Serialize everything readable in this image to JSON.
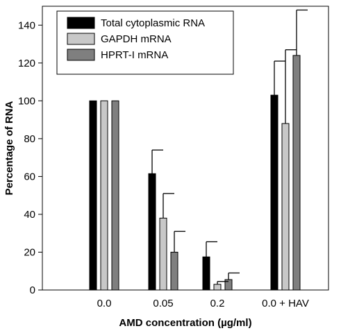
{
  "chart_data": {
    "type": "bar",
    "xlabel": "AMD concentration (µg/ml)",
    "ylabel": "Percentage of RNA",
    "ylim": [
      0,
      150
    ],
    "yticks": [
      0,
      20,
      40,
      60,
      80,
      100,
      120,
      140
    ],
    "categories": [
      "0.0",
      "0.05",
      "0.2",
      "0.0 + HAV"
    ],
    "series": [
      {
        "name": "Total cytoplasmic RNA",
        "color": "#000000",
        "values": [
          100,
          61.5,
          17.5,
          103
        ],
        "errors": [
          0,
          12.5,
          8,
          18
        ]
      },
      {
        "name": "GAPDH mRNA",
        "color": "#c8c8c8",
        "values": [
          100,
          38,
          3,
          88
        ],
        "errors": [
          0,
          13,
          1.5,
          39
        ]
      },
      {
        "name": "HPRT-I  mRNA",
        "color": "#7f7f7f",
        "values": [
          100,
          20,
          5.5,
          124
        ],
        "errors": [
          0,
          11,
          3.5,
          24
        ]
      }
    ],
    "legend_position": "top-left",
    "grid": false
  }
}
